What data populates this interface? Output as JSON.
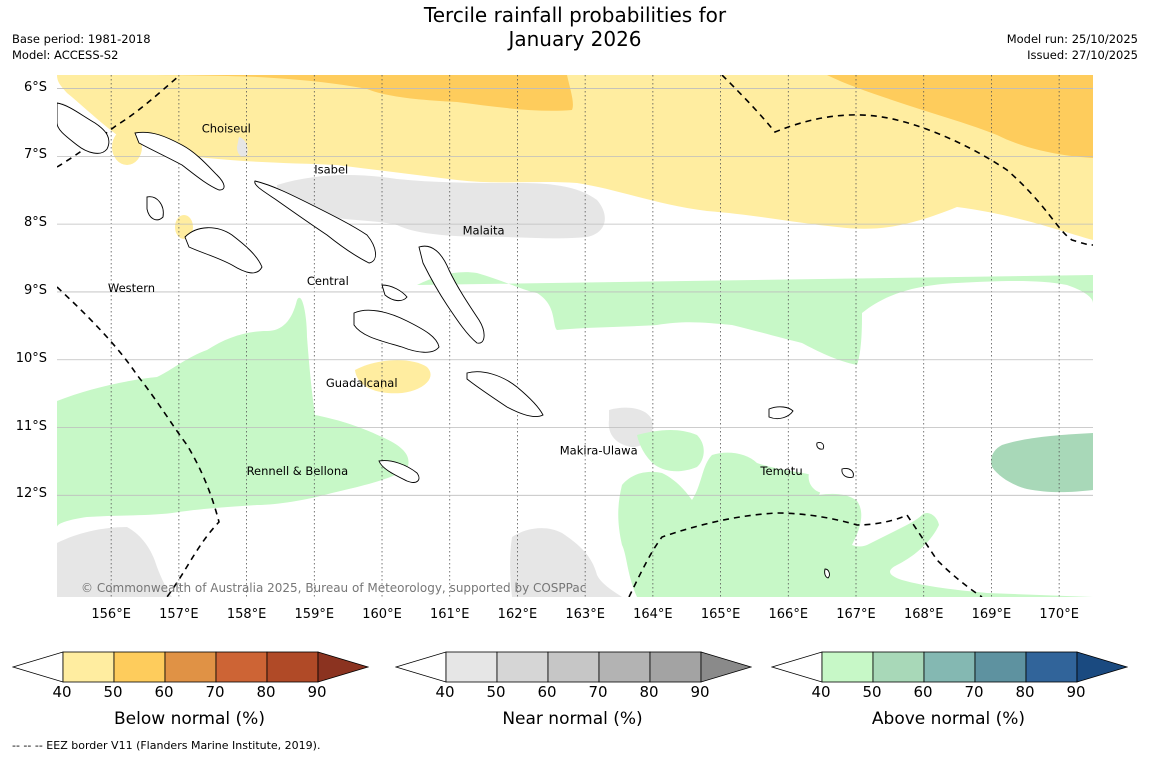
{
  "title": {
    "line1": "Tercile rainfall probabilities for",
    "line2": "January 2026"
  },
  "meta_left": {
    "base_period": "Base period: 1981-2018",
    "model": "Model: ACCESS-S2"
  },
  "meta_right": {
    "model_run": "Model run: 25/10/2025",
    "issued": "Issued: 27/10/2025"
  },
  "map": {
    "lon_range": [
      155.2,
      170.5
    ],
    "lat_range": [
      -5.8,
      -13.5
    ],
    "lat_ticks": [
      {
        "value": -6,
        "label": "6°S"
      },
      {
        "value": -7,
        "label": "7°S"
      },
      {
        "value": -8,
        "label": "8°S"
      },
      {
        "value": -9,
        "label": "9°S"
      },
      {
        "value": -10,
        "label": "10°S"
      },
      {
        "value": -11,
        "label": "11°S"
      },
      {
        "value": -12,
        "label": "12°S"
      }
    ],
    "lon_ticks": [
      {
        "value": 156,
        "label": "156°E"
      },
      {
        "value": 157,
        "label": "157°E"
      },
      {
        "value": 158,
        "label": "158°E"
      },
      {
        "value": 159,
        "label": "159°E"
      },
      {
        "value": 160,
        "label": "160°E"
      },
      {
        "value": 161,
        "label": "161°E"
      },
      {
        "value": 162,
        "label": "162°E"
      },
      {
        "value": 163,
        "label": "163°E"
      },
      {
        "value": 164,
        "label": "164°E"
      },
      {
        "value": 165,
        "label": "165°E"
      },
      {
        "value": 166,
        "label": "166°E"
      },
      {
        "value": 167,
        "label": "167°E"
      },
      {
        "value": 168,
        "label": "168°E"
      },
      {
        "value": 169,
        "label": "169°E"
      },
      {
        "value": 170,
        "label": "170°E"
      }
    ],
    "regions": [
      {
        "name": "Choiseul",
        "lon": 157.7,
        "lat": -6.65
      },
      {
        "name": "Isabel",
        "lon": 159.25,
        "lat": -7.25
      },
      {
        "name": "Malaita",
        "lon": 161.5,
        "lat": -8.15
      },
      {
        "name": "Western",
        "lon": 156.3,
        "lat": -9.0
      },
      {
        "name": "Central",
        "lon": 159.2,
        "lat": -8.9
      },
      {
        "name": "Guadalcanal",
        "lon": 159.7,
        "lat": -10.4
      },
      {
        "name": "Makira-Ulawa",
        "lon": 163.2,
        "lat": -11.4
      },
      {
        "name": "Rennell & Bellona",
        "lon": 158.75,
        "lat": -11.7
      },
      {
        "name": "Temotu",
        "lon": 165.9,
        "lat": -11.7
      }
    ],
    "copyright": "© Commonwealth of Australia 2025, Bureau of Meteorology, supported by COSPPac"
  },
  "colors": {
    "below": [
      "#ffeda0",
      "#fecc5c",
      "#e09245",
      "#cd6435",
      "#b04a27",
      "#8b3320"
    ],
    "near": [
      "#e6e6e6",
      "#d6d6d6",
      "#c6c6c6",
      "#b3b3b3",
      "#a3a3a3",
      "#8a8a8a"
    ],
    "above": [
      "#c7f8c7",
      "#a8d8b8",
      "#84b8b2",
      "#5e92a0",
      "#31649a",
      "#1a4a80"
    ]
  },
  "colorbars": [
    {
      "key": "below",
      "title": "Below normal (%)",
      "ticks": [
        "40",
        "50",
        "60",
        "70",
        "80",
        "90"
      ]
    },
    {
      "key": "near",
      "title": "Near normal (%)",
      "ticks": [
        "40",
        "50",
        "60",
        "70",
        "80",
        "90"
      ]
    },
    {
      "key": "above",
      "title": "Above normal (%)",
      "ticks": [
        "40",
        "50",
        "60",
        "70",
        "80",
        "90"
      ]
    }
  ],
  "footnote": "--  --  -- EEZ border V11 (Flanders Marine Institute, 2019)."
}
